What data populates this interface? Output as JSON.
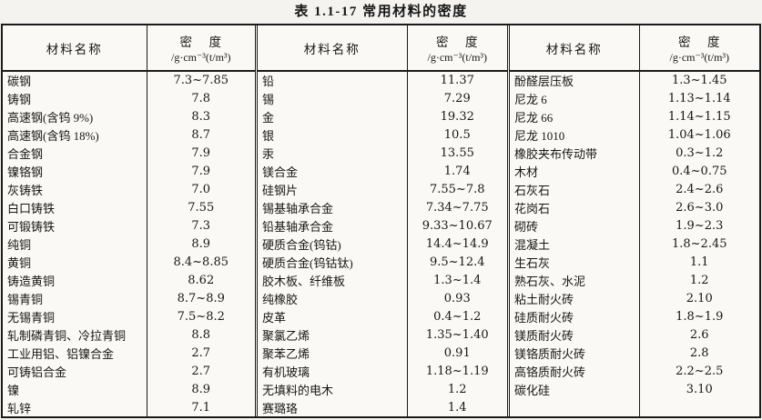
{
  "title": "表 1.1-17  常用材料的密度",
  "headers": {
    "material": "材料名称",
    "density": "密    度",
    "unit": "/g·cm⁻³(t/m³)"
  },
  "groups": [
    {
      "rows": [
        {
          "name": "碳钢",
          "density": "7.3~7.85"
        },
        {
          "name": "铸钢",
          "density": "7.8"
        },
        {
          "name": "高速钢(含钨 9%)",
          "density": "8.3"
        },
        {
          "name": "高速钢(含钨 18%)",
          "density": "8.7"
        },
        {
          "name": "合金钢",
          "density": "7.9"
        },
        {
          "name": "镍铬钢",
          "density": "7.9"
        },
        {
          "name": "灰铸铁",
          "density": "7.0"
        },
        {
          "name": "白口铸铁",
          "density": "7.55"
        },
        {
          "name": "可锻铸铁",
          "density": "7.3"
        },
        {
          "name": "纯铜",
          "density": "8.9"
        },
        {
          "name": "黄铜",
          "density": "8.4~8.85"
        },
        {
          "name": "铸造黄铜",
          "density": "8.62"
        },
        {
          "name": "锡青铜",
          "density": "8.7~8.9"
        },
        {
          "name": "无锡青铜",
          "density": "7.5~8.2"
        },
        {
          "name": "轧制磷青铜、冷拉青铜",
          "density": "8.8"
        },
        {
          "name": "工业用铝、铝镍合金",
          "density": "2.7"
        },
        {
          "name": "可铸铝合金",
          "density": "2.7"
        },
        {
          "name": "镍",
          "density": "8.9"
        },
        {
          "name": "轧锌",
          "density": "7.1"
        }
      ]
    },
    {
      "rows": [
        {
          "name": "铅",
          "density": "11.37"
        },
        {
          "name": "锡",
          "density": "7.29"
        },
        {
          "name": "金",
          "density": "19.32"
        },
        {
          "name": "银",
          "density": "10.5"
        },
        {
          "name": "汞",
          "density": "13.55"
        },
        {
          "name": "镁合金",
          "density": "1.74"
        },
        {
          "name": "硅钢片",
          "density": "7.55~7.8"
        },
        {
          "name": "锡基轴承合金",
          "density": "7.34~7.75"
        },
        {
          "name": "铅基轴承合金",
          "density": "9.33~10.67"
        },
        {
          "name": "硬质合金(钨钴)",
          "density": "14.4~14.9"
        },
        {
          "name": "硬质合金(钨钴钛)",
          "density": "9.5~12.4"
        },
        {
          "name": "胶木板、纤维板",
          "density": "1.3~1.4"
        },
        {
          "name": "纯橡胶",
          "density": "0.93"
        },
        {
          "name": "皮革",
          "density": "0.4~1.2"
        },
        {
          "name": "聚氯乙烯",
          "density": "1.35~1.40"
        },
        {
          "name": "聚苯乙烯",
          "density": "0.91"
        },
        {
          "name": "有机玻璃",
          "density": "1.18~1.19"
        },
        {
          "name": "无填料的电木",
          "density": "1.2"
        },
        {
          "name": "赛璐珞",
          "density": "1.4"
        }
      ]
    },
    {
      "rows": [
        {
          "name": "酚醛层压板",
          "density": "1.3~1.45"
        },
        {
          "name": "尼龙 6",
          "density": "1.13~1.14"
        },
        {
          "name": "尼龙 66",
          "density": "1.14~1.15"
        },
        {
          "name": "尼龙 1010",
          "density": "1.04~1.06"
        },
        {
          "name": "橡胶夹布传动带",
          "density": "0.3~1.2"
        },
        {
          "name": "木材",
          "density": "0.4~0.75"
        },
        {
          "name": "石灰石",
          "density": "2.4~2.6"
        },
        {
          "name": "花岗石",
          "density": "2.6~3.0"
        },
        {
          "name": "砌砖",
          "density": "1.9~2.3"
        },
        {
          "name": "混凝土",
          "density": "1.8~2.45"
        },
        {
          "name": "生石灰",
          "density": "1.1"
        },
        {
          "name": "熟石灰、水泥",
          "density": "1.2"
        },
        {
          "name": "粘土耐火砖",
          "density": "2.10"
        },
        {
          "name": "硅质耐火砖",
          "density": "1.8~1.9"
        },
        {
          "name": "镁质耐火砖",
          "density": "2.6"
        },
        {
          "name": "镁铬质耐火砖",
          "density": "2.8"
        },
        {
          "name": "高铬质耐火砖",
          "density": "2.2~2.5"
        },
        {
          "name": "碳化硅",
          "density": "3.10"
        },
        {
          "name": "",
          "density": ""
        }
      ]
    }
  ]
}
